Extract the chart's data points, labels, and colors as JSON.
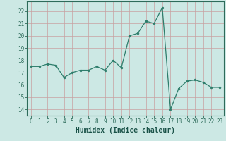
{
  "x": [
    0,
    1,
    2,
    3,
    4,
    5,
    6,
    7,
    8,
    9,
    10,
    11,
    12,
    13,
    14,
    15,
    16,
    17,
    18,
    19,
    20,
    21,
    22,
    23
  ],
  "y": [
    17.5,
    17.5,
    17.7,
    17.6,
    16.6,
    17.0,
    17.2,
    17.2,
    17.5,
    17.2,
    18.0,
    17.4,
    20.0,
    20.2,
    21.2,
    21.0,
    22.3,
    14.0,
    15.7,
    16.3,
    16.4,
    16.2,
    15.8,
    15.8
  ],
  "line_color": "#2d7d6b",
  "marker": "o",
  "marker_size": 2,
  "line_width": 0.9,
  "bg_color": "#cce8e4",
  "grid_color": "#c8a0a0",
  "title": "",
  "xlabel": "Humidex (Indice chaleur)",
  "ylim": [
    13.5,
    22.8
  ],
  "xlim": [
    -0.5,
    23.5
  ],
  "yticks": [
    14,
    15,
    16,
    17,
    18,
    19,
    20,
    21,
    22
  ],
  "xticks": [
    0,
    1,
    2,
    3,
    4,
    5,
    6,
    7,
    8,
    9,
    10,
    11,
    12,
    13,
    14,
    15,
    16,
    17,
    18,
    19,
    20,
    21,
    22,
    23
  ],
  "tick_color": "#2d6b5a",
  "label_color": "#1a5248",
  "axis_color": "#2d6b5a",
  "xlabel_fontsize": 7,
  "tick_fontsize": 5.5
}
